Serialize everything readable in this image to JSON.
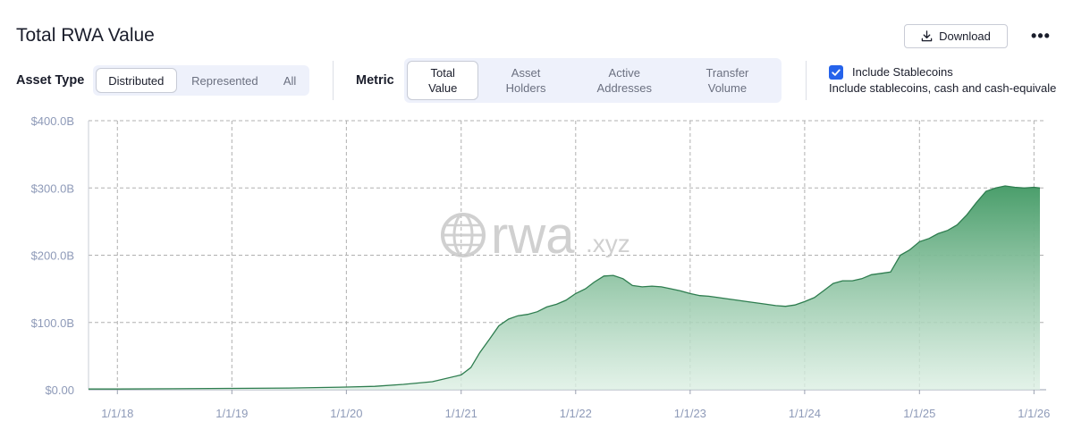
{
  "header": {
    "title": "Total RWA Value",
    "download_label": "Download",
    "more_label": "•••"
  },
  "asset_type": {
    "label": "Asset Type",
    "options": [
      "Distributed",
      "Represented",
      "All"
    ],
    "selected": "Distributed"
  },
  "metric": {
    "label": "Metric",
    "options": [
      {
        "line1": "Total",
        "line2": "Value"
      },
      {
        "line1": "Asset",
        "line2": "Holders"
      },
      {
        "line1": "Active",
        "line2": "Addresses"
      },
      {
        "line1": "Transfer",
        "line2": "Volume"
      }
    ],
    "selected": "Total Value"
  },
  "stablecoins": {
    "checked": true,
    "label": "Include Stablecoins",
    "description": "Include stablecoins, cash and cash-equivale"
  },
  "watermark": {
    "brand": "rwa",
    "suffix": ".xyz"
  },
  "colors": {
    "accent": "#2563eb",
    "line": "#2e7d4f",
    "fill_top": "#4a9e6b",
    "fill_bottom": "#dcefe3",
    "grid": "#b0b0b0",
    "axis_text": "#8e9ab8"
  },
  "chart_data": {
    "type": "area",
    "title": "Total RWA Value",
    "xlabel": "",
    "ylabel": "",
    "x_ticks": [
      "1/1/18",
      "1/1/19",
      "1/1/20",
      "1/1/21",
      "1/1/22",
      "1/1/23",
      "1/1/24",
      "1/1/25",
      "1/1/26"
    ],
    "y_ticks": [
      "$0.00",
      "$100.0B",
      "$200.0B",
      "$300.0B",
      "$400.0B"
    ],
    "ylim": [
      0,
      400
    ],
    "xlim": [
      "2017-10-01",
      "2026-01-20"
    ],
    "grid": true,
    "series": [
      {
        "values_unit": "B",
        "x": [
          "2017-10-01",
          "2018-01-01",
          "2018-07-01",
          "2019-01-01",
          "2019-07-01",
          "2020-01-01",
          "2020-04-01",
          "2020-07-01",
          "2020-10-01",
          "2021-01-01",
          "2021-02-01",
          "2021-03-01",
          "2021-04-01",
          "2021-05-01",
          "2021-06-01",
          "2021-07-01",
          "2021-08-01",
          "2021-09-01",
          "2021-10-01",
          "2021-11-01",
          "2021-12-01",
          "2022-01-01",
          "2022-02-01",
          "2022-03-01",
          "2022-04-01",
          "2022-05-01",
          "2022-06-01",
          "2022-07-01",
          "2022-08-01",
          "2022-09-01",
          "2022-10-01",
          "2022-11-01",
          "2022-12-01",
          "2023-01-01",
          "2023-02-01",
          "2023-03-01",
          "2023-04-01",
          "2023-05-01",
          "2023-06-01",
          "2023-07-01",
          "2023-08-01",
          "2023-09-01",
          "2023-10-01",
          "2023-11-01",
          "2023-12-01",
          "2024-01-01",
          "2024-02-01",
          "2024-03-01",
          "2024-04-01",
          "2024-05-01",
          "2024-06-01",
          "2024-07-01",
          "2024-08-01",
          "2024-09-01",
          "2024-10-01",
          "2024-11-01",
          "2024-12-01",
          "2025-01-01",
          "2025-02-01",
          "2025-03-01",
          "2025-04-01",
          "2025-05-01",
          "2025-06-01",
          "2025-07-01",
          "2025-08-01",
          "2025-09-01",
          "2025-10-01",
          "2025-11-01",
          "2025-12-01",
          "2026-01-01",
          "2026-01-20"
        ],
        "values": [
          1,
          1,
          1.5,
          2,
          2.5,
          4,
          5,
          8,
          12,
          22,
          33,
          55,
          75,
          95,
          105,
          110,
          112,
          116,
          123,
          127,
          133,
          143,
          150,
          160,
          169,
          170,
          165,
          155,
          153,
          154,
          153,
          150,
          147,
          143,
          140,
          139,
          137,
          135,
          133,
          131,
          129,
          127,
          125,
          124,
          126,
          131,
          137,
          147,
          158,
          162,
          162,
          165,
          171,
          173,
          175,
          200,
          208,
          220,
          225,
          232,
          237,
          245,
          260,
          278,
          295,
          300,
          303,
          301,
          300,
          301,
          300
        ]
      }
    ]
  }
}
